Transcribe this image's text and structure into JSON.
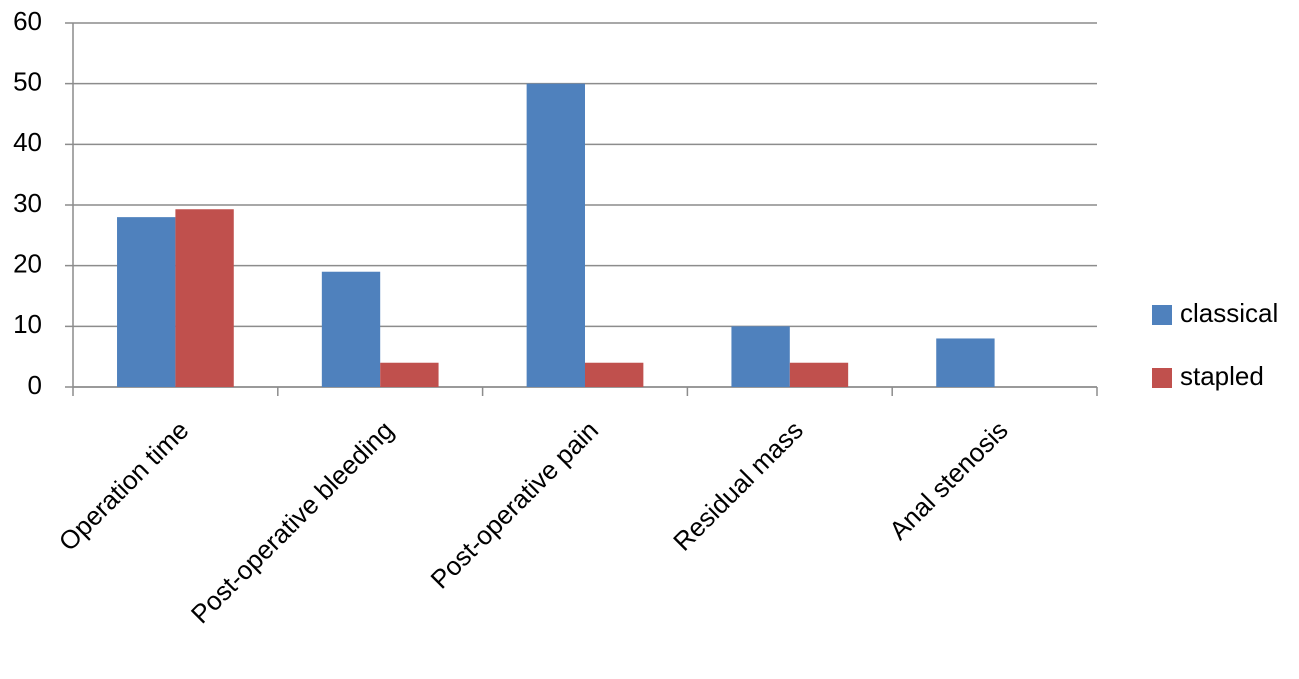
{
  "chart_data": {
    "type": "bar",
    "categories": [
      "Operation time",
      "Post-operative bleeding",
      "Post-operative pain",
      "Residual mass",
      "Anal stenosis"
    ],
    "series": [
      {
        "name": "classical",
        "color": "#4f81bd",
        "values": [
          28,
          19,
          50,
          10,
          8
        ]
      },
      {
        "name": "stapled",
        "color": "#c0504d",
        "values": [
          29.3,
          4,
          4,
          4,
          0
        ]
      }
    ],
    "ylim": [
      0,
      60
    ],
    "yticks": [
      0,
      10,
      20,
      30,
      40,
      50,
      60
    ],
    "grid": true,
    "legend": "right"
  }
}
